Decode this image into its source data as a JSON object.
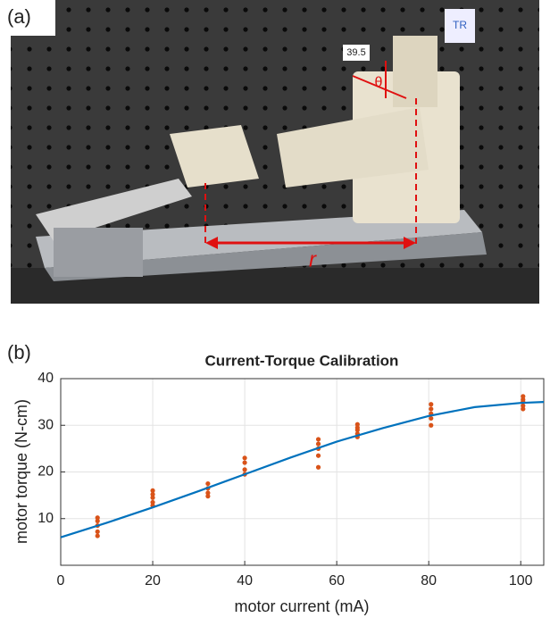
{
  "photo": {
    "panel_label": "(a)",
    "angle_label": "39.5",
    "theta": "θ",
    "r": "r",
    "tag": "TR"
  },
  "chart_data": {
    "type": "scatter",
    "panel_label": "(b)",
    "title": "Current-Torque Calibration",
    "x_label": "motor current (mA)",
    "y_label": "motor torque (N-cm)",
    "xlim": [
      0,
      105
    ],
    "ylim": [
      0,
      40
    ],
    "xticks": [
      0,
      20,
      40,
      60,
      80,
      100
    ],
    "yticks": [
      10,
      20,
      30,
      40
    ],
    "grid": true,
    "series": [
      {
        "type": "scatter",
        "color": "#d95319",
        "x": [
          8,
          8,
          8,
          8,
          8,
          20,
          20,
          20,
          20,
          20,
          32,
          32,
          32,
          32,
          40,
          40,
          40,
          40,
          56,
          56,
          56,
          56,
          56,
          64.5,
          64.5,
          64.5,
          64.5,
          64.5,
          80.5,
          80.5,
          80.5,
          80.5,
          80.5,
          100.5,
          100.5,
          100.5,
          100.5,
          100.5
        ],
        "values": [
          6.3,
          7.2,
          8.5,
          9.5,
          10.2,
          12.8,
          13.5,
          14.5,
          15.2,
          16,
          14.8,
          15.5,
          16.5,
          17.5,
          19.5,
          20.5,
          22,
          23,
          21,
          23.5,
          25,
          26,
          27,
          27.5,
          28.2,
          29,
          29.5,
          30.2,
          30,
          31.5,
          32.5,
          33.5,
          34.5,
          33.5,
          34.2,
          35,
          35.5,
          36.2
        ]
      },
      {
        "type": "line",
        "color": "#0072bd",
        "x": [
          0,
          10,
          20,
          30,
          40,
          50,
          60,
          70,
          80,
          90,
          100,
          105
        ],
        "values": [
          6,
          9.1,
          12.4,
          15.9,
          19.5,
          23.1,
          26.5,
          29.4,
          32,
          33.9,
          34.8,
          35
        ]
      }
    ]
  }
}
